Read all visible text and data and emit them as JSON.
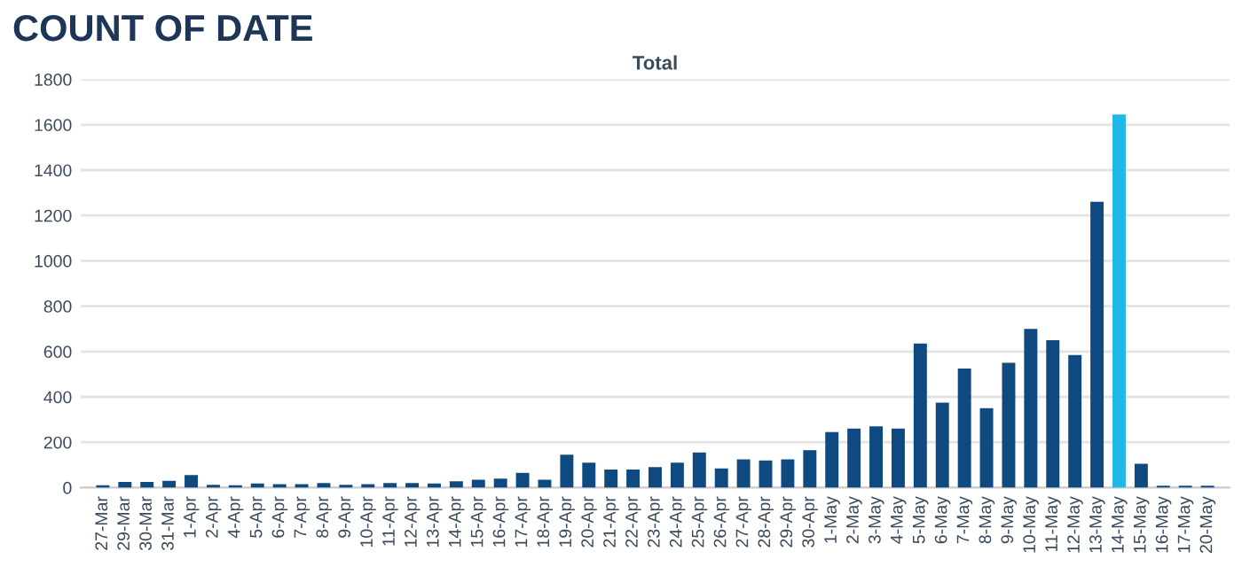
{
  "chart_data": {
    "type": "bar",
    "title": "COUNT OF DATE",
    "subtitle": "Total",
    "categories": [
      "27-Mar",
      "29-Mar",
      "30-Mar",
      "31-Mar",
      "1-Apr",
      "2-Apr",
      "4-Apr",
      "5-Apr",
      "6-Apr",
      "7-Apr",
      "8-Apr",
      "9-Apr",
      "10-Apr",
      "11-Apr",
      "12-Apr",
      "13-Apr",
      "14-Apr",
      "15-Apr",
      "16-Apr",
      "17-Apr",
      "18-Apr",
      "19-Apr",
      "20-Apr",
      "21-Apr",
      "22-Apr",
      "23-Apr",
      "24-Apr",
      "25-Apr",
      "26-Apr",
      "27-Apr",
      "28-Apr",
      "29-Apr",
      "30-Apr",
      "1-May",
      "2-May",
      "3-May",
      "4-May",
      "5-May",
      "6-May",
      "7-May",
      "8-May",
      "9-May",
      "10-May",
      "11-May",
      "12-May",
      "13-May",
      "14-May",
      "15-May",
      "16-May",
      "17-May",
      "20-May"
    ],
    "values": [
      10,
      25,
      25,
      30,
      55,
      12,
      10,
      18,
      15,
      15,
      20,
      12,
      15,
      20,
      20,
      18,
      28,
      35,
      40,
      65,
      35,
      145,
      110,
      80,
      80,
      90,
      110,
      155,
      85,
      125,
      120,
      125,
      165,
      245,
      260,
      270,
      260,
      635,
      375,
      525,
      350,
      550,
      700,
      650,
      585,
      1260,
      1645,
      105,
      8,
      8,
      8
    ],
    "colors": [
      "#0e4a80",
      "#0e4a80",
      "#0e4a80",
      "#0e4a80",
      "#0e4a80",
      "#0e4a80",
      "#0e4a80",
      "#0e4a80",
      "#0e4a80",
      "#0e4a80",
      "#0e4a80",
      "#0e4a80",
      "#0e4a80",
      "#0e4a80",
      "#0e4a80",
      "#0e4a80",
      "#0e4a80",
      "#0e4a80",
      "#0e4a80",
      "#0e4a80",
      "#0e4a80",
      "#0e4a80",
      "#0e4a80",
      "#0e4a80",
      "#0e4a80",
      "#0e4a80",
      "#0e4a80",
      "#0e4a80",
      "#0e4a80",
      "#0e4a80",
      "#0e4a80",
      "#0e4a80",
      "#0e4a80",
      "#0e4a80",
      "#0e4a80",
      "#0e4a80",
      "#0e4a80",
      "#0e4a80",
      "#0e4a80",
      "#0e4a80",
      "#0e4a80",
      "#0e4a80",
      "#0e4a80",
      "#0e4a80",
      "#0e4a80",
      "#0e4a80",
      "#1fb8e8",
      "#0e4a80",
      "#0e4a80",
      "#0e4a80",
      "#0e4a80"
    ],
    "ylim": [
      0,
      1800
    ],
    "yticks": [
      0,
      200,
      400,
      600,
      800,
      1000,
      1200,
      1400,
      1600,
      1800
    ],
    "grid": "y",
    "legend": false
  }
}
